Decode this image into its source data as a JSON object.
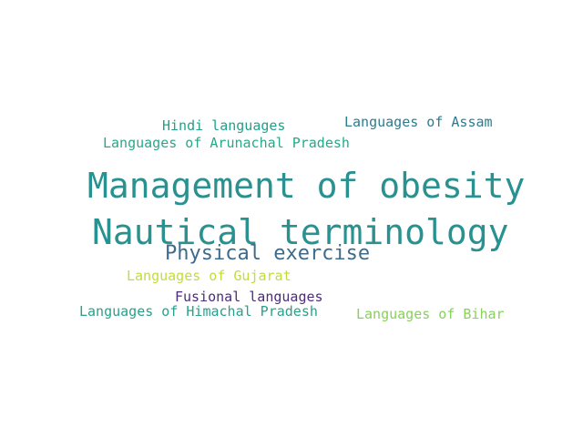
{
  "word_cloud": {
    "words": [
      {
        "text": "Management of obesity",
        "color": "#2a9191"
      },
      {
        "text": "Nautical terminology",
        "color": "#2a9191"
      },
      {
        "text": "Physical exercise",
        "color": "#3e6b8a"
      },
      {
        "text": "Hindi languages",
        "color": "#23a08a"
      },
      {
        "text": "Languages of Assam",
        "color": "#2c7b8e"
      },
      {
        "text": "Languages of Arunachal Pradesh",
        "color": "#28a88a"
      },
      {
        "text": "Languages of Gujarat",
        "color": "#c4dc3a"
      },
      {
        "text": "Fusional languages",
        "color": "#4d2c7d"
      },
      {
        "text": "Languages of Himachal Pradesh",
        "color": "#27a18a"
      },
      {
        "text": "Languages of Bihar",
        "color": "#88d15a"
      }
    ]
  }
}
